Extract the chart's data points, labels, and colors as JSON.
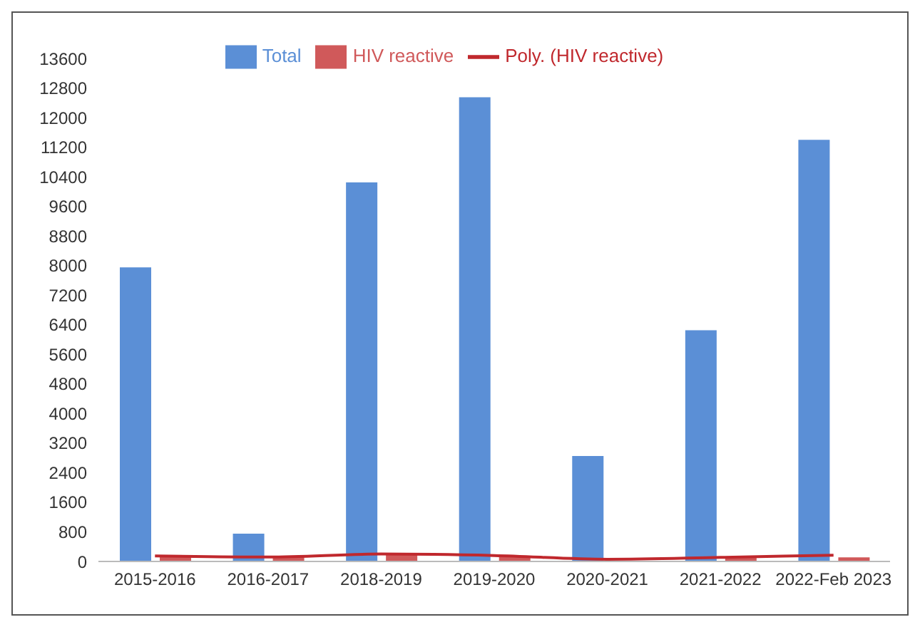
{
  "chart_data": {
    "type": "bar",
    "categories": [
      "2015-2016",
      "2016-2017",
      "2018-2019",
      "2019-2020",
      "2020-2021",
      "2021-2022",
      "2022-Feb 2023"
    ],
    "series": [
      {
        "name": "Total",
        "color": "#5b8fd6",
        "values": [
          7950,
          750,
          10250,
          12550,
          2850,
          6250,
          11400
        ]
      },
      {
        "name": "HIV reactive",
        "color": "#d0595a",
        "values": [
          130,
          120,
          190,
          120,
          null,
          120,
          110
        ]
      },
      {
        "name": "Poly. (HIV reactive)",
        "type": "line",
        "color": "#c0282d",
        "values": [
          150,
          120,
          200,
          160,
          60,
          110,
          170
        ]
      }
    ],
    "ylim": [
      0,
      13600
    ],
    "yticks": [
      0,
      800,
      1600,
      2400,
      3200,
      4000,
      4800,
      5600,
      6400,
      7200,
      8000,
      8800,
      9600,
      10400,
      11200,
      12000,
      12800,
      13600
    ],
    "grid": false,
    "legend": "top",
    "marker": "none"
  }
}
